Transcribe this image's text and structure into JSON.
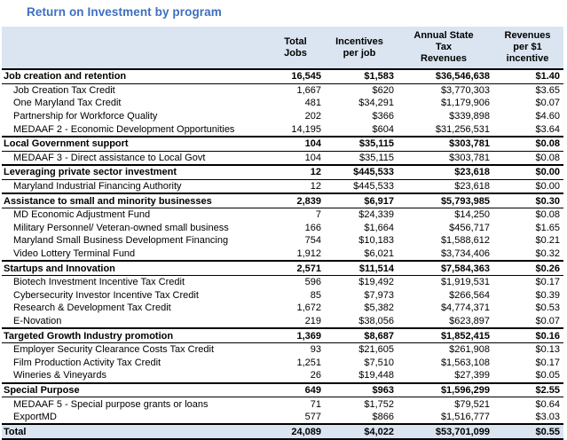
{
  "colors": {
    "title_blue": "#3e6fbe",
    "header_row_bg": "#dbe5f1",
    "total_row_bg": "#dbe5f1",
    "section_border": "#000000"
  },
  "chart_data": {
    "type": "table",
    "title": "Return on Investment by program",
    "columns": [
      "",
      "Total Jobs",
      "Incentives per job",
      "Annual State Tax Revenues",
      "Revenues per $1 incentive"
    ],
    "rows": [
      {
        "label": "Job creation and retention",
        "level": "section",
        "values": [
          "16,545",
          "$1,583",
          "$36,546,638",
          "$1.40"
        ]
      },
      {
        "label": "Job Creation Tax Credit",
        "level": "detail",
        "values": [
          "1,667",
          "$620",
          "$3,770,303",
          "$3.65"
        ]
      },
      {
        "label": "One Maryland Tax Credit",
        "level": "detail",
        "values": [
          "481",
          "$34,291",
          "$1,179,906",
          "$0.07"
        ]
      },
      {
        "label": "Partnership for Workforce Quality",
        "level": "detail",
        "values": [
          "202",
          "$366",
          "$339,898",
          "$4.60"
        ]
      },
      {
        "label": "MEDAAF 2 - Economic Development Opportunities",
        "level": "detail",
        "values": [
          "14,195",
          "$604",
          "$31,256,531",
          "$3.64"
        ]
      },
      {
        "label": "Local Government support",
        "level": "section",
        "values": [
          "104",
          "$35,115",
          "$303,781",
          "$0.08"
        ]
      },
      {
        "label": "MEDAAF 3 - Direct assistance to Local Govt",
        "level": "detail",
        "values": [
          "104",
          "$35,115",
          "$303,781",
          "$0.08"
        ]
      },
      {
        "label": "Leveraging private sector investment",
        "level": "section",
        "values": [
          "12",
          "$445,533",
          "$23,618",
          "$0.00"
        ]
      },
      {
        "label": "Maryland Industrial Financing Authority",
        "level": "detail",
        "values": [
          "12",
          "$445,533",
          "$23,618",
          "$0.00"
        ]
      },
      {
        "label": "Assistance to small and minority businesses",
        "level": "section",
        "values": [
          "2,839",
          "$6,917",
          "$5,793,985",
          "$0.30"
        ]
      },
      {
        "label": "MD Economic Adjustment Fund",
        "level": "detail",
        "values": [
          "7",
          "$24,339",
          "$14,250",
          "$0.08"
        ]
      },
      {
        "label": "Military Personnel/ Veteran-owned small business",
        "level": "detail",
        "values": [
          "166",
          "$1,664",
          "$456,717",
          "$1.65"
        ]
      },
      {
        "label": "Maryland Small Business Development Financing",
        "level": "detail",
        "values": [
          "754",
          "$10,183",
          "$1,588,612",
          "$0.21"
        ]
      },
      {
        "label": "Video Lottery Terminal Fund",
        "level": "detail",
        "values": [
          "1,912",
          "$6,021",
          "$3,734,406",
          "$0.32"
        ]
      },
      {
        "label": "Startups and Innovation",
        "level": "section",
        "values": [
          "2,571",
          "$11,514",
          "$7,584,363",
          "$0.26"
        ]
      },
      {
        "label": "Biotech Investment Incentive Tax Credit",
        "level": "detail",
        "values": [
          "596",
          "$19,492",
          "$1,919,531",
          "$0.17"
        ]
      },
      {
        "label": "Cybersecurity Investor Incentive Tax Credit",
        "level": "detail",
        "values": [
          "85",
          "$7,973",
          "$266,564",
          "$0.39"
        ]
      },
      {
        "label": "Research & Development Tax Credit",
        "level": "detail",
        "values": [
          "1,672",
          "$5,382",
          "$4,774,371",
          "$0.53"
        ]
      },
      {
        "label": "E-Novation",
        "level": "detail",
        "values": [
          "219",
          "$38,056",
          "$623,897",
          "$0.07"
        ]
      },
      {
        "label": "Targeted Growth Industry promotion",
        "level": "section",
        "values": [
          "1,369",
          "$8,687",
          "$1,852,415",
          "$0.16"
        ]
      },
      {
        "label": "Employer Security Clearance Costs Tax Credit",
        "level": "detail",
        "values": [
          "93",
          "$21,605",
          "$261,908",
          "$0.13"
        ]
      },
      {
        "label": "Film Production Activity Tax Credit",
        "level": "detail",
        "values": [
          "1,251",
          "$7,510",
          "$1,563,108",
          "$0.17"
        ]
      },
      {
        "label": "Wineries & Vineyards",
        "level": "detail",
        "values": [
          "26",
          "$19,448",
          "$27,399",
          "$0.05"
        ]
      },
      {
        "label": "Special Purpose",
        "level": "section",
        "values": [
          "649",
          "$963",
          "$1,596,299",
          "$2.55"
        ]
      },
      {
        "label": "MEDAAF 5 - Special purpose grants or loans",
        "level": "detail",
        "values": [
          "71",
          "$1,752",
          "$79,521",
          "$0.64"
        ]
      },
      {
        "label": "ExportMD",
        "level": "detail",
        "values": [
          "577",
          "$866",
          "$1,516,777",
          "$3.03"
        ]
      },
      {
        "label": "Total",
        "level": "total",
        "values": [
          "24,089",
          "$4,022",
          "$53,701,099",
          "$0.55"
        ]
      }
    ]
  }
}
